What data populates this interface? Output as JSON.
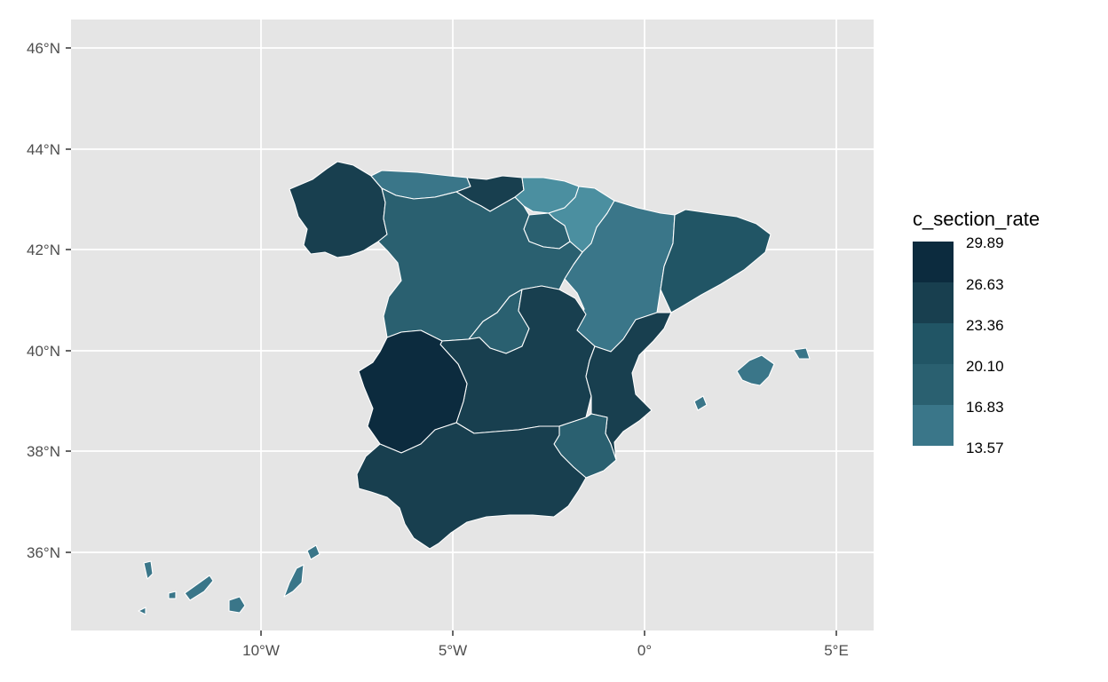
{
  "chart_data": {
    "type": "choropleth",
    "title": "",
    "xlabel": "",
    "ylabel": "",
    "x_ticks": [
      "10°W",
      "5°W",
      "0°",
      "5°E"
    ],
    "x_tick_values": [
      -10,
      -5,
      0,
      5
    ],
    "y_ticks": [
      "46°N",
      "44°N",
      "42°N",
      "40°N",
      "38°N",
      "36°N"
    ],
    "y_tick_values": [
      46,
      44,
      42,
      40,
      38,
      36
    ],
    "xlim": [
      -14.9,
      5.9
    ],
    "ylim": [
      34.5,
      46.6
    ],
    "grid": true,
    "panel_background": "#e5e5e5",
    "legend": {
      "title": "c_section_rate",
      "position": "right",
      "breaks": [
        "29.89",
        "26.63",
        "23.36",
        "20.10",
        "16.83",
        "13.57"
      ],
      "colors": [
        "#0c2b3e",
        "#183f4f",
        "#215565",
        "#2a6070",
        "#3a7689",
        "#4b8fa0"
      ]
    }
  }
}
